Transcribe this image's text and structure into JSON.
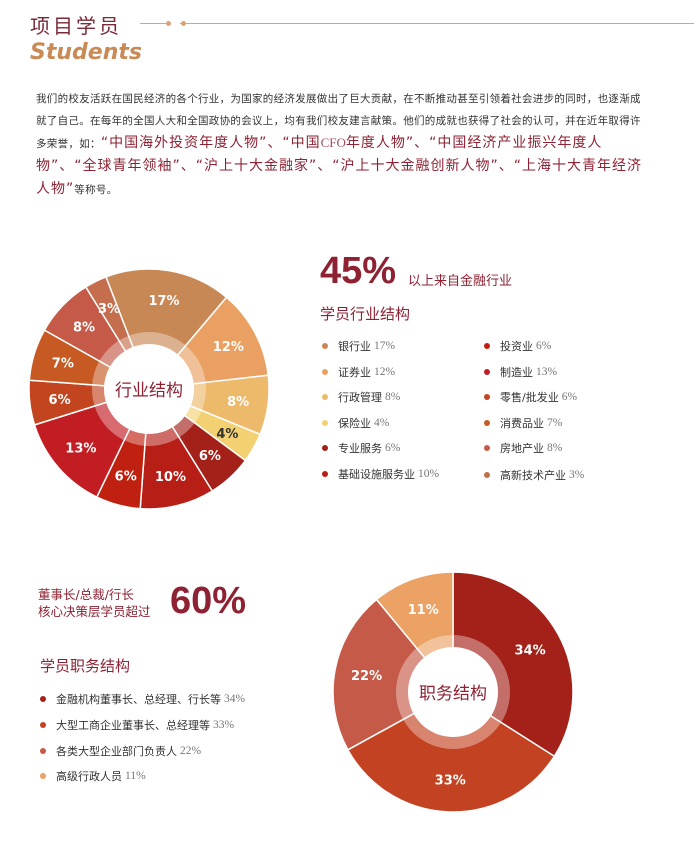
{
  "header": {
    "title": "项目学员",
    "subtitle": "Students"
  },
  "intro": {
    "text_plain": "我们的校友活跃在国民经济的各个行业，为国家的经济发展做出了巨大贡献，在不断推动甚至引领着社会进步的同时，也逐渐成就了自己。在每年的全国人大和全国政协的会议上，均有我们校友建言献策。他们的成就也获得了社会的认可，并在近年取得许多荣誉，如：",
    "hl1": "“中国海外投资年度人物”、“中国",
    "hl1_latin": "CFO",
    "hl2": "年度人物”、“中国经济产业振兴年度人物”、“全球青年领袖”、“沪上十大金融家”、“沪上十大金融创新人物”、“上海十大青年经济人物”",
    "tail": "等称号。"
  },
  "industry": {
    "headline_value": "45%",
    "headline_note": "以上来自金融行业",
    "section_title": "学员行业结构",
    "center_label": "行业结构",
    "legend_left": [
      {
        "label": "银行业",
        "pct": "17%",
        "color": "#C88855"
      },
      {
        "label": "证券业",
        "pct": "12%",
        "color": "#E9A062"
      },
      {
        "label": "行政管理",
        "pct": "8%",
        "color": "#EDB96A"
      },
      {
        "label": "保险业",
        "pct": "4%",
        "color": "#F3D173"
      },
      {
        "label": "专业服务",
        "pct": "6%",
        "color": "#A32119"
      },
      {
        "label": "基础设施服务业",
        "pct": "10%",
        "color": "#B71E16"
      }
    ],
    "legend_right": [
      {
        "label": "投资业",
        "pct": "6%",
        "color": "#C0200F"
      },
      {
        "label": "制造业",
        "pct": "13%",
        "color": "#C21D22"
      },
      {
        "label": "零售/批发业",
        "pct": "6%",
        "color": "#C2451F"
      },
      {
        "label": "消费品业",
        "pct": "7%",
        "color": "#C65A22"
      },
      {
        "label": "房地产业",
        "pct": "8%",
        "color": "#C55A48"
      },
      {
        "label": "高新技术产业",
        "pct": "3%",
        "color": "#C56E4E"
      }
    ]
  },
  "position": {
    "lead_line1": "董事长/总裁/行长",
    "lead_line2": "核心决策层学员超过",
    "headline_value": "60%",
    "section_title": "学员职务结构",
    "center_label": "职务结构",
    "legend": [
      {
        "label": "金融机构董事长、总经理、行长等",
        "pct": "34%",
        "color": "#A32119"
      },
      {
        "label": "大型工商企业董事长、总经理等",
        "pct": "33%",
        "color": "#C34222"
      },
      {
        "label": "各类大型企业部门负责人",
        "pct": "22%",
        "color": "#C55A48"
      },
      {
        "label": "高级行政人员",
        "pct": "11%",
        "color": "#EBA264"
      }
    ]
  },
  "chart_data": [
    {
      "type": "pie",
      "variant": "donut",
      "title": "行业结构",
      "categories": [
        "银行业",
        "证券业",
        "行政管理",
        "保险业",
        "专业服务",
        "基础设施服务业",
        "投资业",
        "制造业",
        "零售/批发业",
        "消费品业",
        "房地产业",
        "高新技术产业"
      ],
      "values": [
        17,
        12,
        8,
        4,
        6,
        10,
        6,
        13,
        6,
        7,
        8,
        3
      ],
      "labels": [
        "17%",
        "12%",
        "8%",
        "4%",
        "6%",
        "10%",
        "6%",
        "13%",
        "6%",
        "7%",
        "8%",
        "3%"
      ],
      "colors": [
        "#C88855",
        "#E9A062",
        "#EDB96A",
        "#F3D173",
        "#A32119",
        "#B71E16",
        "#C0200F",
        "#C21D22",
        "#C2451F",
        "#C65A22",
        "#C55A48",
        "#C56E4E"
      ],
      "start_angle_deg": -111,
      "legend_position": "right"
    },
    {
      "type": "pie",
      "variant": "donut",
      "title": "职务结构",
      "categories": [
        "金融机构董事长、总经理、行长等",
        "大型工商企业董事长、总经理等",
        "各类大型企业部门负责人",
        "高级行政人员"
      ],
      "values": [
        34,
        33,
        22,
        11
      ],
      "labels": [
        "34%",
        "33%",
        "22%",
        "11%"
      ],
      "colors": [
        "#A32119",
        "#C34222",
        "#C55A48",
        "#EBA264"
      ],
      "start_angle_deg": -90,
      "legend_position": "left"
    }
  ]
}
